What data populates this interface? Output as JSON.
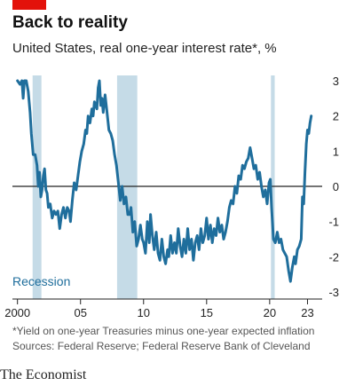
{
  "accent_color": "#e3120b",
  "line_color": "#1f6e9c",
  "recession_color": "#c5dbe7",
  "header": {
    "title": "Back to reality",
    "subtitle": "United States, real one-year interest rate*, %"
  },
  "footer": {
    "footnote": "*Yield on one-year Treasuries minus one-year expected inflation",
    "sources": "Sources: Federal Reserve; Federal Reserve Bank of Cleveland",
    "brand": "The Economist"
  },
  "chart_data": {
    "type": "line",
    "title": "Back to reality",
    "subtitle": "United States, real one-year interest rate*, %",
    "xlabel": "",
    "ylabel": "",
    "xlim": [
      1999.6,
      2023.6
    ],
    "ylim": [
      -3,
      3
    ],
    "grid": false,
    "zero_line": true,
    "y_axis_side": "right",
    "x_ticks": [
      {
        "value": 2000,
        "label": "2000"
      },
      {
        "value": 2005,
        "label": "05"
      },
      {
        "value": 2010,
        "label": "10"
      },
      {
        "value": 2015,
        "label": "15"
      },
      {
        "value": 2020,
        "label": "20"
      },
      {
        "value": 2023,
        "label": "23"
      }
    ],
    "y_ticks": [
      {
        "value": 3,
        "label": "3"
      },
      {
        "value": 2,
        "label": "2"
      },
      {
        "value": 1,
        "label": "1"
      },
      {
        "value": 0,
        "label": "0"
      },
      {
        "value": -1,
        "label": "-1"
      },
      {
        "value": -2,
        "label": "-2"
      },
      {
        "value": -3,
        "label": "-3"
      }
    ],
    "recessions": [
      {
        "start": 2001.2,
        "end": 2001.9
      },
      {
        "start": 2007.9,
        "end": 2009.5
      },
      {
        "start": 2020.1,
        "end": 2020.4
      }
    ],
    "recession_label": "Recession",
    "series": [
      {
        "points": [
          [
            2000.0,
            3.0
          ],
          [
            2000.2,
            2.9
          ],
          [
            2000.35,
            3.0
          ],
          [
            2000.45,
            2.5
          ],
          [
            2000.55,
            3.0
          ],
          [
            2000.7,
            3.0
          ],
          [
            2000.85,
            2.7
          ],
          [
            2001.0,
            2.1
          ],
          [
            2001.1,
            1.5
          ],
          [
            2001.25,
            0.9
          ],
          [
            2001.4,
            0.9
          ],
          [
            2001.55,
            0.6
          ],
          [
            2001.65,
            0.0
          ],
          [
            2001.75,
            0.4
          ],
          [
            2001.85,
            -0.3
          ],
          [
            2001.95,
            -0.1
          ],
          [
            2002.05,
            0.3
          ],
          [
            2002.15,
            0.5
          ],
          [
            2002.25,
            -0.1
          ],
          [
            2002.35,
            -0.2
          ],
          [
            2002.45,
            -0.6
          ],
          [
            2002.6,
            -0.5
          ],
          [
            2002.75,
            -0.9
          ],
          [
            2002.9,
            -0.7
          ],
          [
            2003.05,
            -0.8
          ],
          [
            2003.2,
            -0.7
          ],
          [
            2003.35,
            -1.2
          ],
          [
            2003.5,
            -0.8
          ],
          [
            2003.65,
            -0.6
          ],
          [
            2003.8,
            -0.9
          ],
          [
            2003.95,
            -0.6
          ],
          [
            2004.1,
            -0.7
          ],
          [
            2004.2,
            -1.0
          ],
          [
            2004.35,
            -0.4
          ],
          [
            2004.5,
            0.1
          ],
          [
            2004.65,
            -0.1
          ],
          [
            2004.8,
            0.3
          ],
          [
            2004.95,
            0.7
          ],
          [
            2005.1,
            1.0
          ],
          [
            2005.25,
            1.2
          ],
          [
            2005.4,
            1.6
          ],
          [
            2005.5,
            1.5
          ],
          [
            2005.6,
            2.0
          ],
          [
            2005.75,
            1.8
          ],
          [
            2005.9,
            2.2
          ],
          [
            2006.0,
            2.0
          ],
          [
            2006.1,
            2.4
          ],
          [
            2006.2,
            2.3
          ],
          [
            2006.3,
            2.2
          ],
          [
            2006.4,
            2.8
          ],
          [
            2006.5,
            3.0
          ],
          [
            2006.6,
            2.3
          ],
          [
            2006.7,
            2.5
          ],
          [
            2006.8,
            2.1
          ],
          [
            2006.95,
            2.6
          ],
          [
            2007.1,
            2.1
          ],
          [
            2007.25,
            1.6
          ],
          [
            2007.4,
            1.5
          ],
          [
            2007.55,
            1.3
          ],
          [
            2007.7,
            0.9
          ],
          [
            2007.85,
            0.6
          ],
          [
            2008.0,
            0.1
          ],
          [
            2008.15,
            -0.4
          ],
          [
            2008.3,
            0.0
          ],
          [
            2008.45,
            -0.5
          ],
          [
            2008.6,
            -0.3
          ],
          [
            2008.75,
            -0.8
          ],
          [
            2008.9,
            -0.8
          ],
          [
            2009.0,
            -0.6
          ],
          [
            2009.15,
            -1.3
          ],
          [
            2009.3,
            -1.0
          ],
          [
            2009.45,
            -1.7
          ],
          [
            2009.6,
            -1.5
          ],
          [
            2009.75,
            -1.1
          ],
          [
            2009.9,
            -1.5
          ],
          [
            2010.0,
            -1.6
          ],
          [
            2010.15,
            -1.9
          ],
          [
            2010.3,
            -1.0
          ],
          [
            2010.45,
            -1.6
          ],
          [
            2010.55,
            -0.8
          ],
          [
            2010.7,
            -1.4
          ],
          [
            2010.85,
            -1.8
          ],
          [
            2011.0,
            -1.3
          ],
          [
            2011.15,
            -1.9
          ],
          [
            2011.3,
            -2.1
          ],
          [
            2011.45,
            -1.5
          ],
          [
            2011.6,
            -2.0
          ],
          [
            2011.75,
            -2.2
          ],
          [
            2011.9,
            -1.8
          ],
          [
            2012.0,
            -2.0
          ],
          [
            2012.15,
            -1.4
          ],
          [
            2012.3,
            -1.9
          ],
          [
            2012.45,
            -1.6
          ],
          [
            2012.6,
            -1.9
          ],
          [
            2012.75,
            -1.2
          ],
          [
            2012.9,
            -1.7
          ],
          [
            2013.05,
            -2.0
          ],
          [
            2013.2,
            -1.5
          ],
          [
            2013.35,
            -1.9
          ],
          [
            2013.5,
            -1.2
          ],
          [
            2013.65,
            -1.8
          ],
          [
            2013.8,
            -1.5
          ],
          [
            2013.95,
            -2.1
          ],
          [
            2014.1,
            -1.6
          ],
          [
            2014.25,
            -1.4
          ],
          [
            2014.4,
            -1.8
          ],
          [
            2014.55,
            -1.2
          ],
          [
            2014.7,
            -1.6
          ],
          [
            2014.85,
            -1.4
          ],
          [
            2015.0,
            -0.9
          ],
          [
            2015.15,
            -1.5
          ],
          [
            2015.3,
            -1.1
          ],
          [
            2015.45,
            -1.6
          ],
          [
            2015.6,
            -1.2
          ],
          [
            2015.75,
            -1.4
          ],
          [
            2015.9,
            -0.9
          ],
          [
            2016.05,
            -1.3
          ],
          [
            2016.2,
            -1.1
          ],
          [
            2016.35,
            -1.5
          ],
          [
            2016.5,
            -1.3
          ],
          [
            2016.65,
            -1.0
          ],
          [
            2016.8,
            -0.6
          ],
          [
            2016.95,
            -0.4
          ],
          [
            2017.1,
            -0.5
          ],
          [
            2017.25,
            0.0
          ],
          [
            2017.4,
            -0.2
          ],
          [
            2017.55,
            0.3
          ],
          [
            2017.7,
            0.2
          ],
          [
            2017.85,
            0.6
          ],
          [
            2018.0,
            0.5
          ],
          [
            2018.15,
            0.7
          ],
          [
            2018.3,
            0.8
          ],
          [
            2018.45,
            1.1
          ],
          [
            2018.6,
            0.8
          ],
          [
            2018.75,
            0.5
          ],
          [
            2018.9,
            0.6
          ],
          [
            2019.05,
            0.2
          ],
          [
            2019.2,
            0.4
          ],
          [
            2019.35,
            0.0
          ],
          [
            2019.5,
            -0.3
          ],
          [
            2019.65,
            -0.1
          ],
          [
            2019.8,
            -0.5
          ],
          [
            2019.95,
            0.1
          ],
          [
            2020.05,
            0.2
          ],
          [
            2020.15,
            -0.6
          ],
          [
            2020.3,
            -1.5
          ],
          [
            2020.45,
            -1.6
          ],
          [
            2020.6,
            -1.3
          ],
          [
            2020.75,
            -1.6
          ],
          [
            2020.9,
            -1.5
          ],
          [
            2021.05,
            -1.8
          ],
          [
            2021.2,
            -1.9
          ],
          [
            2021.35,
            -2.0
          ],
          [
            2021.5,
            -2.4
          ],
          [
            2021.65,
            -2.7
          ],
          [
            2021.8,
            -2.3
          ],
          [
            2021.95,
            -2.0
          ],
          [
            2022.05,
            -2.2
          ],
          [
            2022.2,
            -1.8
          ],
          [
            2022.35,
            -1.7
          ],
          [
            2022.5,
            -1.5
          ],
          [
            2022.6,
            -0.3
          ],
          [
            2022.7,
            -0.5
          ],
          [
            2022.8,
            0.4
          ],
          [
            2022.9,
            1.2
          ],
          [
            2023.0,
            1.6
          ],
          [
            2023.1,
            1.5
          ],
          [
            2023.2,
            1.8
          ],
          [
            2023.3,
            2.0
          ]
        ]
      }
    ]
  }
}
